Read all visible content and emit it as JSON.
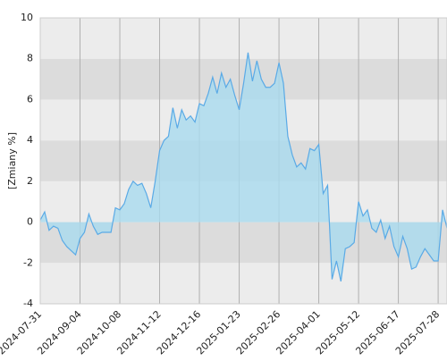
{
  "chart_data": {
    "type": "area",
    "ylabel": "[Zmiany %]",
    "categories": [
      "2024-07-31",
      null,
      null,
      null,
      null,
      null,
      null,
      null,
      null,
      "2024-09-04",
      null,
      null,
      null,
      null,
      null,
      null,
      null,
      null,
      "2024-10-08",
      null,
      null,
      null,
      null,
      null,
      null,
      null,
      null,
      "2024-11-12",
      null,
      null,
      null,
      null,
      null,
      null,
      null,
      null,
      "2024-12-16",
      null,
      null,
      null,
      null,
      null,
      null,
      null,
      null,
      "2025-01-23",
      null,
      null,
      null,
      null,
      null,
      null,
      null,
      null,
      "2025-02-26",
      null,
      null,
      null,
      null,
      null,
      null,
      null,
      null,
      "2025-04-01",
      null,
      null,
      null,
      null,
      null,
      null,
      null,
      null,
      "2025-05-12",
      null,
      null,
      null,
      null,
      null,
      null,
      null,
      null,
      "2025-06-17",
      null,
      null,
      null,
      null,
      null,
      null,
      null,
      null,
      "2025-07-28",
      null,
      null
    ],
    "series": [
      {
        "color": "#5aaae6",
        "fill": "#a9dbef",
        "values": [
          0.1,
          0.5,
          -0.4,
          -0.2,
          -0.3,
          -0.9,
          -1.2,
          -1.4,
          -1.6,
          -0.8,
          -0.5,
          0.4,
          -0.2,
          -0.6,
          -0.5,
          -0.5,
          -0.5,
          0.7,
          0.6,
          0.9,
          1.6,
          2.0,
          1.8,
          1.9,
          1.4,
          0.7,
          2.0,
          3.5,
          4.0,
          4.2,
          5.6,
          4.6,
          5.5,
          5.0,
          5.2,
          4.9,
          5.8,
          5.7,
          6.3,
          7.1,
          6.3,
          7.3,
          6.6,
          7.0,
          6.2,
          5.5,
          6.8,
          8.3,
          6.9,
          7.9,
          7.0,
          6.6,
          6.6,
          6.8,
          7.8,
          6.8,
          4.2,
          3.3,
          2.7,
          2.9,
          2.6,
          3.6,
          3.5,
          3.8,
          1.4,
          1.8,
          -2.8,
          -1.9,
          -2.9,
          -1.3,
          -1.2,
          -1.0,
          1.0,
          0.3,
          0.6,
          -0.3,
          -0.5,
          0.1,
          -0.8,
          -0.2,
          -1.2,
          -1.7,
          -0.7,
          -1.3,
          -2.3,
          -2.2,
          -1.7,
          -1.3,
          -1.6,
          -1.9,
          -1.9,
          0.6,
          -0.3
        ]
      }
    ],
    "ylim": [
      -4,
      10
    ],
    "yticks": [
      -4,
      -2,
      0,
      2,
      4,
      6,
      8,
      10
    ],
    "grid": true
  }
}
